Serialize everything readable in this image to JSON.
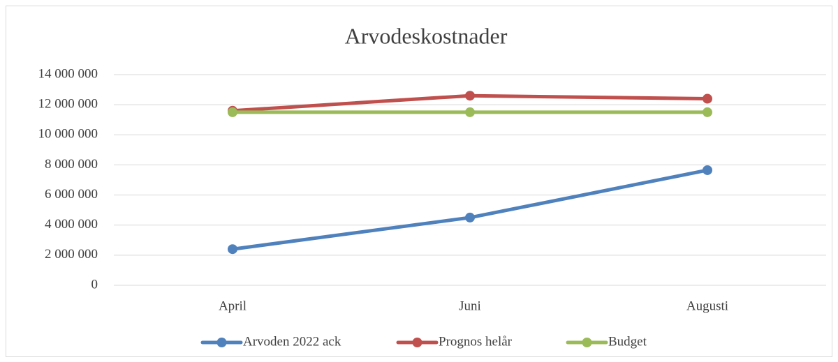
{
  "chart_data": {
    "type": "line",
    "title": "Arvodeskostnader",
    "categories": [
      "April",
      "Juni",
      "Augusti"
    ],
    "series": [
      {
        "name": "Arvoden 2022 ack",
        "color": "#4f81bd",
        "values": [
          2400000,
          4500000,
          7650000
        ]
      },
      {
        "name": "Prognos helår",
        "color": "#c0504d",
        "values": [
          11600000,
          12600000,
          12400000
        ]
      },
      {
        "name": "Budget",
        "color": "#9bbb59",
        "values": [
          11500000,
          11500000,
          11500000
        ]
      }
    ],
    "ylim": [
      0,
      14000000
    ],
    "yticks": [
      0,
      {
        "value": 2000000,
        "label": "2 000 000"
      },
      {
        "value": 4000000,
        "label": "4 000 000"
      },
      {
        "value": 6000000,
        "label": "6 000 000"
      },
      {
        "value": 8000000,
        "label": "8 000 000"
      },
      {
        "value": 10000000,
        "label": "10 000 000"
      },
      {
        "value": 12000000,
        "label": "12 000 000"
      },
      {
        "value": 14000000,
        "label": "14 000 000"
      }
    ],
    "grid": true,
    "legend": "bottom"
  }
}
